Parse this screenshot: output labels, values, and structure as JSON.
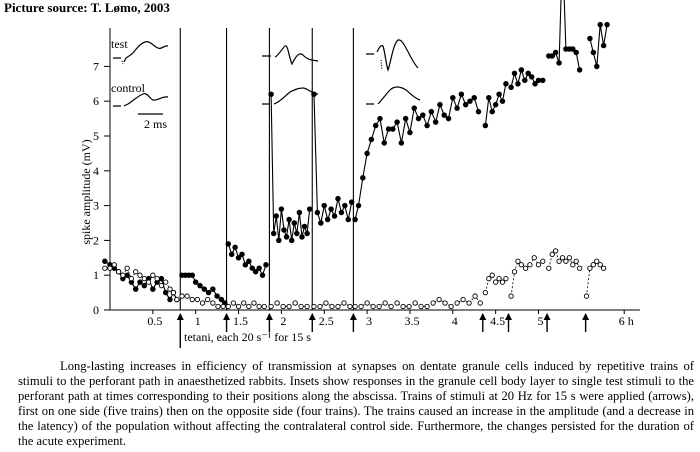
{
  "header": {
    "source": "Picture source: T. Lømo, 2003"
  },
  "chart_data": {
    "type": "line",
    "ylabel": "spike amplitude (mV)",
    "y_ticks": [
      "0",
      "1",
      "2",
      "3",
      "4",
      "5",
      "6",
      "7"
    ],
    "ylim": [
      0,
      8
    ],
    "xlim": [
      0,
      6
    ],
    "x_ticks": [
      {
        "label": "0.5",
        "value": 0.5
      },
      {
        "label": "1",
        "value": 1.0
      },
      {
        "label": "1.5",
        "value": 1.5
      },
      {
        "label": "2",
        "value": 2.0
      },
      {
        "label": "2.5",
        "value": 2.5
      },
      {
        "label": "3",
        "value": 3.0
      },
      {
        "label": "3.5",
        "value": 3.5
      },
      {
        "label": "4",
        "value": 4.0
      },
      {
        "label": "4.5",
        "value": 4.5
      },
      {
        "label": "5",
        "value": 5.0
      },
      {
        "label": "6 h",
        "value": 6.0
      }
    ],
    "arrow_annotation": "tetani, each 20 s⁻¹ for 15 s",
    "tetani_times": [
      0.82,
      1.36,
      1.86,
      2.36,
      2.84,
      4.35,
      4.65,
      5.1,
      5.55
    ],
    "ipsilateral_tetani_lines": [
      0.82,
      1.36,
      1.86,
      2.36,
      2.84
    ],
    "insets": {
      "test_label": "test",
      "control_label": "control",
      "scale_label": "2 ms"
    },
    "series": [
      {
        "style": "filled-markers-solid",
        "segments": [
          {
            "x": [
              -0.06,
              0.0,
              0.05,
              0.1,
              0.15,
              0.2,
              0.25,
              0.3,
              0.35,
              0.4,
              0.45,
              0.5,
              0.55,
              0.6,
              0.65,
              0.7,
              0.74,
              0.78
            ],
            "y": [
              1.4,
              1.3,
              1.2,
              1.1,
              0.9,
              1.0,
              0.8,
              0.6,
              0.8,
              0.7,
              0.9,
              0.6,
              0.8,
              0.9,
              0.5,
              0.3,
              0.5,
              0.3
            ]
          },
          {
            "x": [
              0.84,
              0.88,
              0.92,
              0.96,
              1.0,
              1.05,
              1.1,
              1.15,
              1.2,
              1.25,
              1.3,
              1.34
            ],
            "y": [
              1.0,
              1.0,
              1.0,
              1.0,
              0.8,
              0.7,
              0.6,
              0.5,
              0.6,
              0.4,
              0.3,
              0.2
            ]
          },
          {
            "x": [
              1.38,
              1.42,
              1.46,
              1.5,
              1.54,
              1.58,
              1.62,
              1.66,
              1.7,
              1.74,
              1.78,
              1.82
            ],
            "y": [
              1.9,
              1.6,
              1.8,
              1.5,
              1.6,
              1.3,
              1.4,
              1.2,
              1.1,
              1.2,
              1.0,
              1.3
            ]
          },
          {
            "x": [
              1.88,
              1.91,
              1.94,
              1.97,
              2.0,
              2.03,
              2.06,
              2.09,
              2.12,
              2.15,
              2.18,
              2.21,
              2.24,
              2.27,
              2.3,
              2.33
            ],
            "y": [
              6.2,
              2.2,
              2.7,
              2.0,
              2.9,
              2.3,
              2.1,
              2.6,
              2.0,
              2.5,
              2.2,
              2.8,
              2.1,
              2.4,
              2.2,
              2.9
            ]
          },
          {
            "x": [
              2.38,
              2.42,
              2.46,
              2.5,
              2.54,
              2.58,
              2.62,
              2.66,
              2.7,
              2.74,
              2.78,
              2.82
            ],
            "y": [
              6.2,
              2.8,
              2.5,
              3.0,
              2.6,
              2.9,
              2.7,
              3.2,
              2.8,
              3.0,
              2.6,
              3.1
            ]
          },
          {
            "x": [
              2.86,
              2.9,
              2.95,
              3.0,
              3.05,
              3.1,
              3.15,
              3.2,
              3.25,
              3.3,
              3.35,
              3.4,
              3.45,
              3.5,
              3.55,
              3.6,
              3.65,
              3.7,
              3.75,
              3.8,
              3.85,
              3.9,
              3.95,
              4.0,
              4.05,
              4.1,
              4.15,
              4.2,
              4.25,
              4.3
            ],
            "y": [
              2.6,
              3.0,
              3.8,
              4.5,
              4.9,
              5.3,
              5.5,
              4.8,
              5.2,
              5.2,
              5.4,
              4.8,
              5.5,
              5.1,
              5.8,
              5.5,
              5.6,
              5.3,
              5.7,
              5.4,
              5.9,
              5.6,
              5.5,
              6.1,
              5.8,
              6.2,
              5.9,
              6.0,
              6.1,
              5.7
            ]
          },
          {
            "x": [
              4.38,
              4.42,
              4.46,
              4.5,
              4.54,
              4.58,
              4.62
            ],
            "y": [
              5.3,
              6.1,
              5.7,
              5.9,
              6.2,
              6.0,
              6.5
            ]
          },
          {
            "x": [
              4.68,
              4.72,
              4.76,
              4.8,
              4.84,
              4.88,
              4.92,
              4.96,
              5.0,
              5.05
            ],
            "y": [
              6.4,
              6.8,
              6.5,
              6.9,
              6.6,
              6.8,
              6.7,
              6.5,
              6.6,
              6.6
            ]
          },
          {
            "x": [
              5.12,
              5.16,
              5.2,
              5.24,
              5.28,
              5.32,
              5.36,
              5.4,
              5.44,
              5.48
            ],
            "y": [
              7.3,
              7.3,
              7.4,
              7.1,
              10.4,
              7.5,
              7.5,
              7.5,
              7.4,
              6.9
            ]
          },
          {
            "x": [
              5.6,
              5.64,
              5.68,
              5.72,
              5.76,
              5.8
            ],
            "y": [
              7.8,
              7.4,
              7.0,
              8.2,
              7.6,
              8.2
            ]
          }
        ]
      },
      {
        "style": "open-markers-dashed",
        "segments": [
          {
            "x": [
              -0.06,
              0.0,
              0.05,
              0.1,
              0.15,
              0.2,
              0.25,
              0.3,
              0.35,
              0.4,
              0.45,
              0.5,
              0.55,
              0.6,
              0.65,
              0.7,
              0.74,
              0.78
            ],
            "y": [
              1.2,
              1.2,
              1.3,
              1.1,
              1.0,
              1.2,
              0.9,
              1.1,
              1.0,
              0.9,
              0.8,
              1.0,
              0.9,
              0.7,
              0.8,
              0.6,
              0.5,
              0.3
            ]
          },
          {
            "x": [
              0.84,
              0.9,
              0.96,
              1.02,
              1.08,
              1.14,
              1.2,
              1.26,
              1.32
            ],
            "y": [
              0.4,
              0.4,
              0.3,
              0.3,
              0.2,
              0.3,
              0.2,
              0.1,
              0.1
            ]
          },
          {
            "x": [
              1.38,
              1.44,
              1.5,
              1.56,
              1.62,
              1.68,
              1.74,
              1.8
            ],
            "y": [
              0.1,
              0.2,
              0.1,
              0.2,
              0.1,
              0.2,
              0.1,
              0.1
            ]
          },
          {
            "x": [
              1.88,
              1.95,
              2.02,
              2.09,
              2.16,
              2.23,
              2.3
            ],
            "y": [
              0.1,
              0.2,
              0.1,
              0.1,
              0.2,
              0.1,
              0.1
            ]
          },
          {
            "x": [
              2.38,
              2.45,
              2.52,
              2.59,
              2.66,
              2.73,
              2.8
            ],
            "y": [
              0.1,
              0.1,
              0.2,
              0.1,
              0.1,
              0.2,
              0.1
            ]
          },
          {
            "x": [
              2.86,
              2.93,
              3.0,
              3.07,
              3.14,
              3.21,
              3.28,
              3.35,
              3.42,
              3.49,
              3.56,
              3.63,
              3.7,
              3.77,
              3.84,
              3.91,
              3.98,
              4.05,
              4.12,
              4.19,
              4.26,
              4.32
            ],
            "y": [
              0.1,
              0.1,
              0.2,
              0.1,
              0.1,
              0.2,
              0.1,
              0.2,
              0.1,
              0.1,
              0.2,
              0.1,
              0.1,
              0.2,
              0.3,
              0.2,
              0.1,
              0.2,
              0.3,
              0.2,
              0.4,
              0.2
            ]
          },
          {
            "x": [
              4.38,
              4.42,
              4.46,
              4.5,
              4.54,
              4.58,
              4.62
            ],
            "y": [
              0.5,
              0.9,
              1.0,
              0.8,
              0.9,
              0.8,
              0.9
            ]
          },
          {
            "x": [
              4.68,
              4.72,
              4.76,
              4.8,
              4.85,
              4.9,
              4.95,
              5.0,
              5.05
            ],
            "y": [
              0.4,
              1.1,
              1.4,
              1.3,
              1.2,
              1.3,
              1.5,
              1.3,
              1.4
            ]
          },
          {
            "x": [
              5.12,
              5.16,
              5.2,
              5.24,
              5.28,
              5.32,
              5.36,
              5.4,
              5.44,
              5.48
            ],
            "y": [
              1.2,
              1.6,
              1.7,
              1.4,
              1.5,
              1.4,
              1.5,
              1.3,
              1.4,
              1.2
            ]
          },
          {
            "x": [
              5.56,
              5.6,
              5.64,
              5.68,
              5.72,
              5.76
            ],
            "y": [
              0.4,
              1.2,
              1.3,
              1.4,
              1.3,
              1.2
            ]
          }
        ]
      }
    ]
  },
  "caption": "Long-lasting increases in efficiency of transmission at synapses on dentate granule cells induced by repetitive trains of stimuli to the perforant path in anaesthetized rabbits. Insets show responses in the granule cell body layer to single test stimuli to the perforant path at times corresponding to their positions along the abscissa. Trains of stimuli at 20 Hz for 15 s were applied (arrows), first on one side (five trains) then on the opposite side (four trains). The trains caused an increase in the amplitude (and a decrease in the latency) of the population without affecting the contralateral control side. Furthermore, the changes persisted for the duration of the acute experiment."
}
